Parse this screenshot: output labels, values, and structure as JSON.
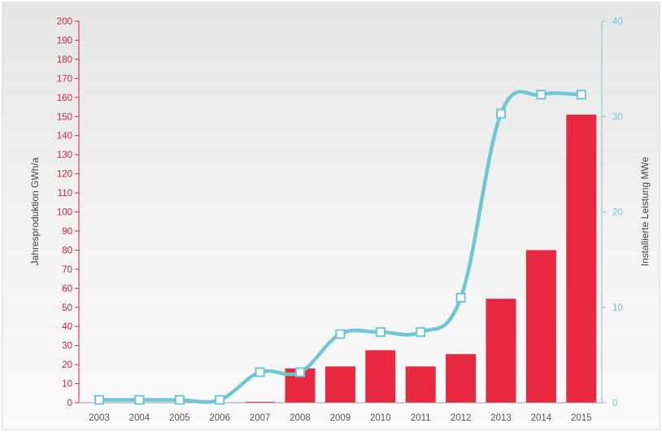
{
  "chart_data": {
    "type": "bar",
    "categories": [
      "2003",
      "2004",
      "2005",
      "2006",
      "2007",
      "2008",
      "2009",
      "2010",
      "2011",
      "2012",
      "2013",
      "2014",
      "2015"
    ],
    "series": [
      {
        "type": "bar",
        "axis": "left",
        "color": "#e8283f",
        "values": [
          0,
          0,
          0,
          0,
          0.5,
          18,
          19,
          27.5,
          19,
          25.5,
          54.5,
          80,
          151
        ]
      },
      {
        "type": "line",
        "axis": "right",
        "color": "#6fc7d4",
        "values": [
          0.3,
          0.3,
          0.3,
          0.3,
          3.2,
          3.2,
          7.2,
          7.4,
          7.4,
          11.0,
          30.3,
          32.3,
          32.3
        ]
      }
    ],
    "ylabel": "Jahresproduktion GWh/a",
    "ylabel_right": "Installierte Leistung MWe",
    "ylim": [
      0,
      200
    ],
    "ylim_right": [
      0,
      40
    ],
    "yticks": [
      0,
      10,
      20,
      30,
      40,
      50,
      60,
      70,
      80,
      90,
      100,
      110,
      120,
      130,
      140,
      150,
      160,
      170,
      180,
      190,
      200
    ],
    "yticks_right": [
      0,
      10,
      20,
      30,
      40
    ],
    "grid": false,
    "legend": "none"
  }
}
